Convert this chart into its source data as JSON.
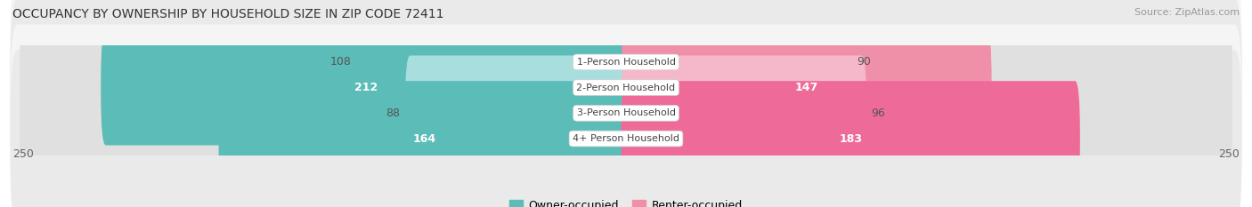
{
  "title": "OCCUPANCY BY OWNERSHIP BY HOUSEHOLD SIZE IN ZIP CODE 72411",
  "source": "Source: ZipAtlas.com",
  "categories": [
    "1-Person Household",
    "2-Person Household",
    "3-Person Household",
    "4+ Person Household"
  ],
  "owner_values": [
    108,
    212,
    88,
    164
  ],
  "renter_values": [
    90,
    147,
    96,
    183
  ],
  "max_val": 250,
  "owner_color_light": [
    "#a8dedd",
    "#5bbcb8",
    "#a8dedd",
    "#5bbcb8"
  ],
  "owner_color_dark": [
    "#5bbcb8",
    "#3aacaa",
    "#5bbcb8",
    "#3aacaa"
  ],
  "renter_color_light": [
    "#f5b8ca",
    "#f090a8",
    "#f5b8ca",
    "#ee6b99"
  ],
  "renter_color_dark": [
    "#f090a8",
    "#ea6090",
    "#f090a8",
    "#e84090"
  ],
  "row_bg_colors": [
    "#f5f5f5",
    "#eaeaea",
    "#f5f5f5",
    "#eaeaea"
  ],
  "track_color": "#e8e8e8",
  "legend_owner": "Owner-occupied",
  "legend_renter": "Renter-occupied",
  "owner_color_legend": "#5bbcb8",
  "renter_color_legend": "#f090a8",
  "axis_label_left": "250",
  "axis_label_right": "250",
  "title_fontsize": 10,
  "source_fontsize": 8,
  "bar_label_fontsize": 9,
  "category_fontsize": 8,
  "axis_fontsize": 9,
  "legend_fontsize": 9,
  "owner_label_inside": [
    false,
    true,
    false,
    true
  ],
  "renter_label_inside": [
    false,
    true,
    false,
    true
  ]
}
